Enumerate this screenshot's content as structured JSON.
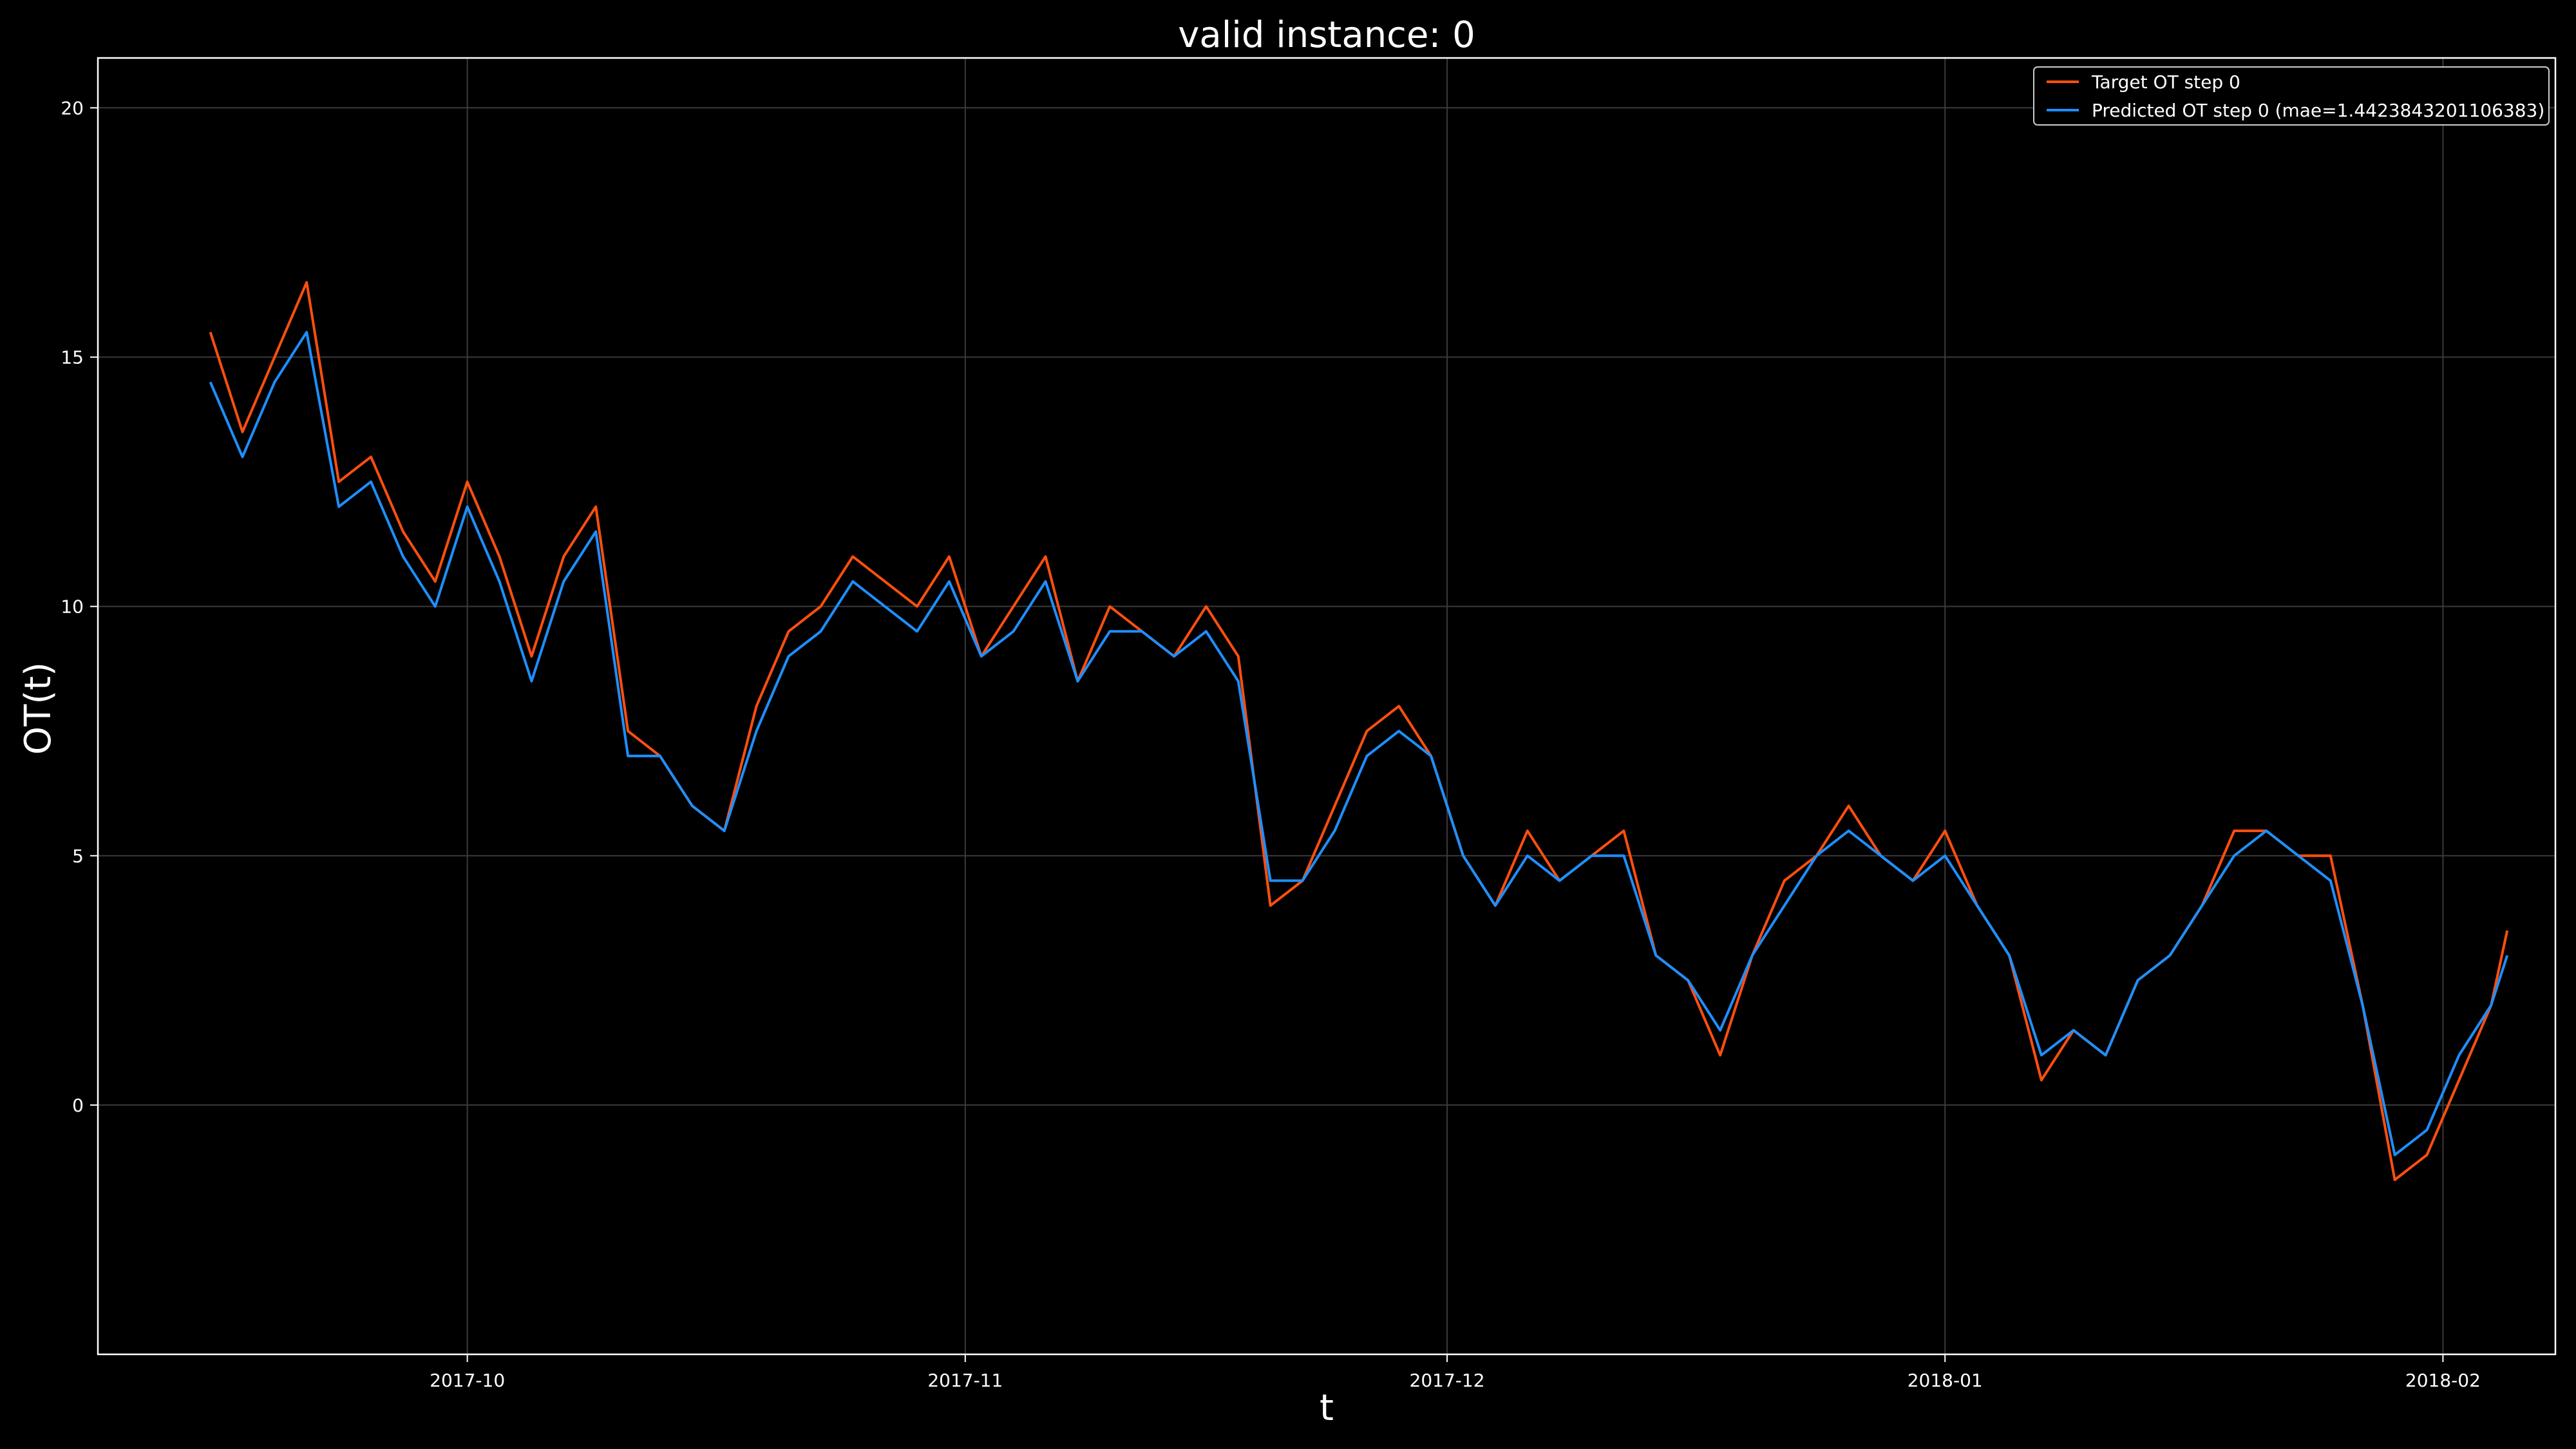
{
  "chart_data": {
    "type": "line",
    "title": "valid instance: 0",
    "xlabel": "t",
    "ylabel": "OT(t)",
    "x_range": [
      "2017-09-08",
      "2018-02-08"
    ],
    "ylim": [
      -5,
      21
    ],
    "x_ticks": [
      "2017-10",
      "2017-11",
      "2017-12",
      "2018-01",
      "2018-02"
    ],
    "x_tick_dates": [
      "2017-10-01",
      "2017-11-01",
      "2017-12-01",
      "2018-01-01",
      "2018-02-01"
    ],
    "y_ticks": [
      0,
      5,
      10,
      15,
      20
    ],
    "grid": true,
    "legend_position": "top-right",
    "background": "#000000",
    "series": [
      {
        "name": "Target OT step 0",
        "color": "#ff4f0f",
        "points": [
          [
            "2017-09-15",
            15.5
          ],
          [
            "2017-09-17",
            13.5
          ],
          [
            "2017-09-19",
            15.0
          ],
          [
            "2017-09-21",
            16.5
          ],
          [
            "2017-09-23",
            12.5
          ],
          [
            "2017-09-25",
            13.0
          ],
          [
            "2017-09-27",
            11.5
          ],
          [
            "2017-09-29",
            10.5
          ],
          [
            "2017-10-01",
            12.5
          ],
          [
            "2017-10-03",
            11.0
          ],
          [
            "2017-10-05",
            9.0
          ],
          [
            "2017-10-07",
            11.0
          ],
          [
            "2017-10-09",
            12.0
          ],
          [
            "2017-10-11",
            7.5
          ],
          [
            "2017-10-13",
            7.0
          ],
          [
            "2017-10-15",
            6.0
          ],
          [
            "2017-10-17",
            5.5
          ],
          [
            "2017-10-19",
            8.0
          ],
          [
            "2017-10-21",
            9.5
          ],
          [
            "2017-10-23",
            10.0
          ],
          [
            "2017-10-25",
            11.0
          ],
          [
            "2017-10-27",
            10.5
          ],
          [
            "2017-10-29",
            10.0
          ],
          [
            "2017-10-31",
            11.0
          ],
          [
            "2017-11-02",
            9.0
          ],
          [
            "2017-11-04",
            10.0
          ],
          [
            "2017-11-06",
            11.0
          ],
          [
            "2017-11-08",
            8.5
          ],
          [
            "2017-11-10",
            10.0
          ],
          [
            "2017-11-12",
            9.5
          ],
          [
            "2017-11-14",
            9.0
          ],
          [
            "2017-11-16",
            10.0
          ],
          [
            "2017-11-18",
            9.0
          ],
          [
            "2017-11-20",
            4.0
          ],
          [
            "2017-11-22",
            4.5
          ],
          [
            "2017-11-24",
            6.0
          ],
          [
            "2017-11-26",
            7.5
          ],
          [
            "2017-11-28",
            8.0
          ],
          [
            "2017-11-30",
            7.0
          ],
          [
            "2017-12-02",
            5.0
          ],
          [
            "2017-12-04",
            4.0
          ],
          [
            "2017-12-06",
            5.5
          ],
          [
            "2017-12-08",
            4.5
          ],
          [
            "2017-12-10",
            5.0
          ],
          [
            "2017-12-12",
            5.5
          ],
          [
            "2017-12-14",
            3.0
          ],
          [
            "2017-12-16",
            2.5
          ],
          [
            "2017-12-18",
            1.0
          ],
          [
            "2017-12-20",
            3.0
          ],
          [
            "2017-12-22",
            4.5
          ],
          [
            "2017-12-24",
            5.0
          ],
          [
            "2017-12-26",
            6.0
          ],
          [
            "2017-12-28",
            5.0
          ],
          [
            "2017-12-30",
            4.5
          ],
          [
            "2018-01-01",
            5.5
          ],
          [
            "2018-01-03",
            4.0
          ],
          [
            "2018-01-05",
            3.0
          ],
          [
            "2018-01-07",
            0.5
          ],
          [
            "2018-01-09",
            1.5
          ],
          [
            "2018-01-11",
            1.0
          ],
          [
            "2018-01-13",
            2.5
          ],
          [
            "2018-01-15",
            3.0
          ],
          [
            "2018-01-17",
            4.0
          ],
          [
            "2018-01-19",
            5.5
          ],
          [
            "2018-01-21",
            5.5
          ],
          [
            "2018-01-23",
            5.0
          ],
          [
            "2018-01-25",
            5.0
          ],
          [
            "2018-01-27",
            2.0
          ],
          [
            "2018-01-29",
            -1.5
          ],
          [
            "2018-01-31",
            -1.0
          ],
          [
            "2018-02-02",
            0.5
          ],
          [
            "2018-02-04",
            2.0
          ],
          [
            "2018-02-05",
            3.5
          ]
        ]
      },
      {
        "name": "Predicted OT step 0 (mae=1.4423843201106383)",
        "color": "#1e8fff",
        "points": [
          [
            "2017-09-15",
            14.5
          ],
          [
            "2017-09-17",
            13.0
          ],
          [
            "2017-09-19",
            14.5
          ],
          [
            "2017-09-21",
            15.5
          ],
          [
            "2017-09-23",
            12.0
          ],
          [
            "2017-09-25",
            12.5
          ],
          [
            "2017-09-27",
            11.0
          ],
          [
            "2017-09-29",
            10.0
          ],
          [
            "2017-10-01",
            12.0
          ],
          [
            "2017-10-03",
            10.5
          ],
          [
            "2017-10-05",
            8.5
          ],
          [
            "2017-10-07",
            10.5
          ],
          [
            "2017-10-09",
            11.5
          ],
          [
            "2017-10-11",
            7.0
          ],
          [
            "2017-10-13",
            7.0
          ],
          [
            "2017-10-15",
            6.0
          ],
          [
            "2017-10-17",
            5.5
          ],
          [
            "2017-10-19",
            7.5
          ],
          [
            "2017-10-21",
            9.0
          ],
          [
            "2017-10-23",
            9.5
          ],
          [
            "2017-10-25",
            10.5
          ],
          [
            "2017-10-27",
            10.0
          ],
          [
            "2017-10-29",
            9.5
          ],
          [
            "2017-10-31",
            10.5
          ],
          [
            "2017-11-02",
            9.0
          ],
          [
            "2017-11-04",
            9.5
          ],
          [
            "2017-11-06",
            10.5
          ],
          [
            "2017-11-08",
            8.5
          ],
          [
            "2017-11-10",
            9.5
          ],
          [
            "2017-11-12",
            9.5
          ],
          [
            "2017-11-14",
            9.0
          ],
          [
            "2017-11-16",
            9.5
          ],
          [
            "2017-11-18",
            8.5
          ],
          [
            "2017-11-20",
            4.5
          ],
          [
            "2017-11-22",
            4.5
          ],
          [
            "2017-11-24",
            5.5
          ],
          [
            "2017-11-26",
            7.0
          ],
          [
            "2017-11-28",
            7.5
          ],
          [
            "2017-11-30",
            7.0
          ],
          [
            "2017-12-02",
            5.0
          ],
          [
            "2017-12-04",
            4.0
          ],
          [
            "2017-12-06",
            5.0
          ],
          [
            "2017-12-08",
            4.5
          ],
          [
            "2017-12-10",
            5.0
          ],
          [
            "2017-12-12",
            5.0
          ],
          [
            "2017-12-14",
            3.0
          ],
          [
            "2017-12-16",
            2.5
          ],
          [
            "2017-12-18",
            1.5
          ],
          [
            "2017-12-20",
            3.0
          ],
          [
            "2017-12-22",
            4.0
          ],
          [
            "2017-12-24",
            5.0
          ],
          [
            "2017-12-26",
            5.5
          ],
          [
            "2017-12-28",
            5.0
          ],
          [
            "2017-12-30",
            4.5
          ],
          [
            "2018-01-01",
            5.0
          ],
          [
            "2018-01-03",
            4.0
          ],
          [
            "2018-01-05",
            3.0
          ],
          [
            "2018-01-07",
            1.0
          ],
          [
            "2018-01-09",
            1.5
          ],
          [
            "2018-01-11",
            1.0
          ],
          [
            "2018-01-13",
            2.5
          ],
          [
            "2018-01-15",
            3.0
          ],
          [
            "2018-01-17",
            4.0
          ],
          [
            "2018-01-19",
            5.0
          ],
          [
            "2018-01-21",
            5.5
          ],
          [
            "2018-01-23",
            5.0
          ],
          [
            "2018-01-25",
            4.5
          ],
          [
            "2018-01-27",
            2.0
          ],
          [
            "2018-01-29",
            -1.0
          ],
          [
            "2018-01-31",
            -0.5
          ],
          [
            "2018-02-02",
            1.0
          ],
          [
            "2018-02-04",
            2.0
          ],
          [
            "2018-02-05",
            3.0
          ]
        ]
      }
    ]
  }
}
